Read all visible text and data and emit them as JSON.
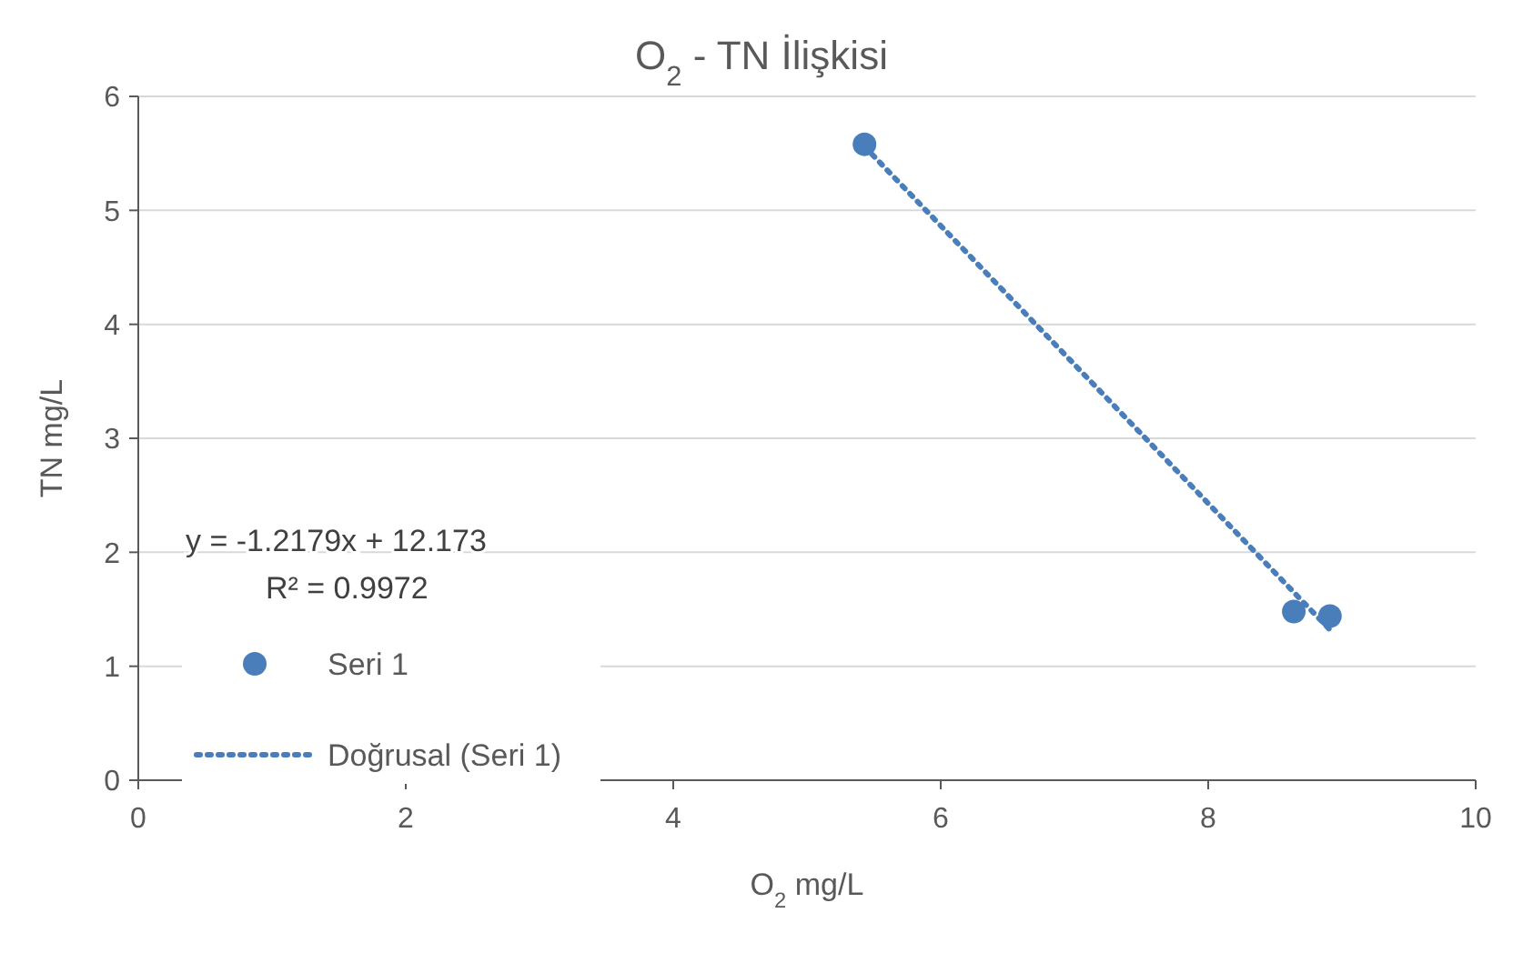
{
  "chart_data": {
    "type": "scatter",
    "title": "O$_{2}$ - TN İlişkisi",
    "xlabel": "O$_{2}$ mg/L",
    "ylabel": "TN mg/L",
    "xlim": [
      0,
      10
    ],
    "xticks": [
      0,
      2,
      4,
      6,
      8,
      10
    ],
    "ylim": [
      0,
      6
    ],
    "yticks": [
      0,
      1,
      2,
      3,
      4,
      5,
      6
    ],
    "grid": "y",
    "legend": "left",
    "marker": "circle",
    "series": [
      {
        "name": "Seri 1",
        "color": "#4a7ebb",
        "x": [
          5.43,
          8.64,
          8.91
        ],
        "values": [
          5.58,
          1.48,
          1.44
        ]
      },
      {
        "name": "Doğrusal (Seri 1)",
        "type": "line",
        "color": "#4a7ebb",
        "line_style": "dotted",
        "marker": "none",
        "x": [
          5.43,
          8.91
        ],
        "values": [
          5.56,
          1.32
        ]
      }
    ],
    "annotations": [
      "y = -1.2179x + 12.173",
      "R² = 0.9972"
    ]
  }
}
